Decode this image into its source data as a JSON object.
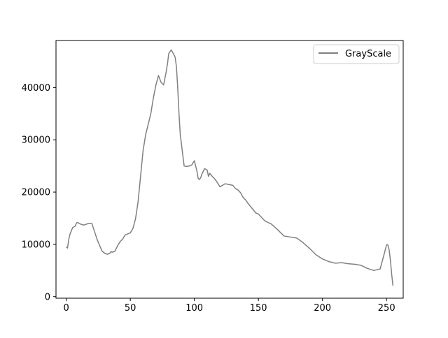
{
  "chart_data": {
    "type": "line",
    "xlim": [
      -8,
      263
    ],
    "ylim": [
      -300,
      49000
    ],
    "x_ticks": [
      0,
      50,
      100,
      150,
      200,
      250
    ],
    "y_ticks": [
      0,
      10000,
      20000,
      30000,
      40000
    ],
    "grid": false,
    "legend_position": "top-right",
    "series": [
      {
        "name": "GrayScale",
        "color": "#808080",
        "x": [
          0,
          1,
          2,
          3,
          5,
          7,
          8,
          9,
          10,
          12,
          14,
          16,
          18,
          20,
          22,
          24,
          26,
          28,
          30,
          32,
          34,
          35,
          36,
          38,
          40,
          42,
          44,
          46,
          48,
          50,
          52,
          54,
          56,
          58,
          60,
          62,
          64,
          66,
          68,
          70,
          72,
          74,
          76,
          78,
          79,
          80,
          82,
          84,
          85,
          86,
          87,
          88,
          89,
          90,
          91,
          92,
          94,
          96,
          98,
          100,
          102,
          103,
          104,
          105,
          106,
          108,
          110,
          111,
          112,
          114,
          116,
          118,
          120,
          122,
          124,
          126,
          128,
          130,
          132,
          134,
          136,
          138,
          140,
          142,
          144,
          146,
          148,
          150,
          155,
          160,
          165,
          170,
          175,
          180,
          185,
          190,
          195,
          200,
          205,
          210,
          215,
          220,
          225,
          230,
          235,
          240,
          245,
          248,
          250,
          251,
          252,
          253,
          254,
          255
        ],
        "y": [
          9500,
          9300,
          11000,
          12000,
          13200,
          13500,
          14100,
          14200,
          14000,
          13800,
          13700,
          13900,
          14000,
          14000,
          12500,
          11000,
          9800,
          8700,
          8300,
          8100,
          8300,
          8600,
          8500,
          8700,
          9700,
          10500,
          11000,
          11800,
          12000,
          12200,
          13000,
          14800,
          18000,
          23000,
          28000,
          31000,
          33000,
          35000,
          38000,
          40500,
          42300,
          41000,
          40500,
          43000,
          44500,
          46500,
          47200,
          46300,
          45800,
          44000,
          40000,
          35000,
          31000,
          29000,
          27000,
          25000,
          24900,
          25000,
          25200,
          26000,
          24000,
          22600,
          22400,
          22800,
          23500,
          24500,
          24200,
          23000,
          23600,
          23000,
          22500,
          21800,
          21000,
          21300,
          21600,
          21500,
          21400,
          21300,
          20700,
          20400,
          19900,
          19000,
          18500,
          17800,
          17200,
          16600,
          16000,
          15800,
          14500,
          13900,
          12800,
          11600,
          11400,
          11200,
          10300,
          9200,
          8000,
          7200,
          6700,
          6400,
          6500,
          6300,
          6200,
          6000,
          5400,
          5000,
          5300,
          8000,
          9900,
          9900,
          9000,
          7000,
          4300,
          2100
        ]
      }
    ]
  }
}
